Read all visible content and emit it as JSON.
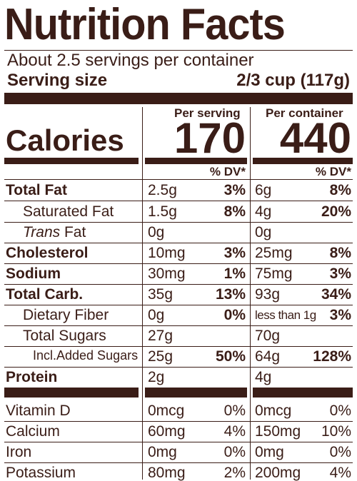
{
  "header": {
    "title": "Nutrition Facts",
    "servings": "About 2.5 servings per container",
    "serving_size_label": "Serving size",
    "serving_size_value": "2/3 cup (117g)"
  },
  "columns": {
    "per_serving": "Per serving",
    "per_container": "Per container",
    "dv_label": "% DV*"
  },
  "calories": {
    "label": "Calories",
    "per_serving": "170",
    "per_container": "440"
  },
  "nutrients": [
    {
      "name": "Total Fat",
      "amt": "2.5g",
      "dv": "3%",
      "amt_c": "6g",
      "dv_c": "8%"
    },
    {
      "name": "Saturated Fat",
      "amt": "1.5g",
      "dv": "8%",
      "amt_c": "4g",
      "dv_c": "20%"
    },
    {
      "name_italic": "Trans",
      "name_rest": " Fat",
      "amt": "0g",
      "amt_c": "0g"
    },
    {
      "name": "Cholesterol",
      "amt": "10mg",
      "dv": "3%",
      "amt_c": "25mg",
      "dv_c": "8%"
    },
    {
      "name": "Sodium",
      "amt": "30mg",
      "dv": "1%",
      "amt_c": "75mg",
      "dv_c": "3%"
    },
    {
      "name": "Total Carb.",
      "amt": "35g",
      "dv": "13%",
      "amt_c": "93g",
      "dv_c": "34%"
    },
    {
      "name": "Dietary Fiber",
      "amt": "0g",
      "dv": "0%",
      "amt_c": "less than 1g",
      "dv_c": "3%"
    },
    {
      "name": "Total Sugars",
      "amt": "27g",
      "amt_c": "70g"
    },
    {
      "name": "Incl.Added Sugars",
      "amt": "25g",
      "dv": "50%",
      "amt_c": "64g",
      "dv_c": "128%"
    },
    {
      "name": "Protein",
      "amt": "2g",
      "amt_c": "4g"
    }
  ],
  "vitamins": [
    {
      "name": "Vitamin D",
      "amt": "0mcg",
      "dv": "0%",
      "amt_c": "0mcg",
      "dv_c": "0%"
    },
    {
      "name": "Calcium",
      "amt": "60mg",
      "dv": "4%",
      "amt_c": "150mg",
      "dv_c": "10%"
    },
    {
      "name": "Iron",
      "amt": "0mg",
      "dv": "0%",
      "amt_c": "0mg",
      "dv_c": "0%"
    },
    {
      "name": "Potassium",
      "amt": "80mg",
      "dv": "2%",
      "amt_c": "200mg",
      "dv_c": "4%"
    }
  ]
}
